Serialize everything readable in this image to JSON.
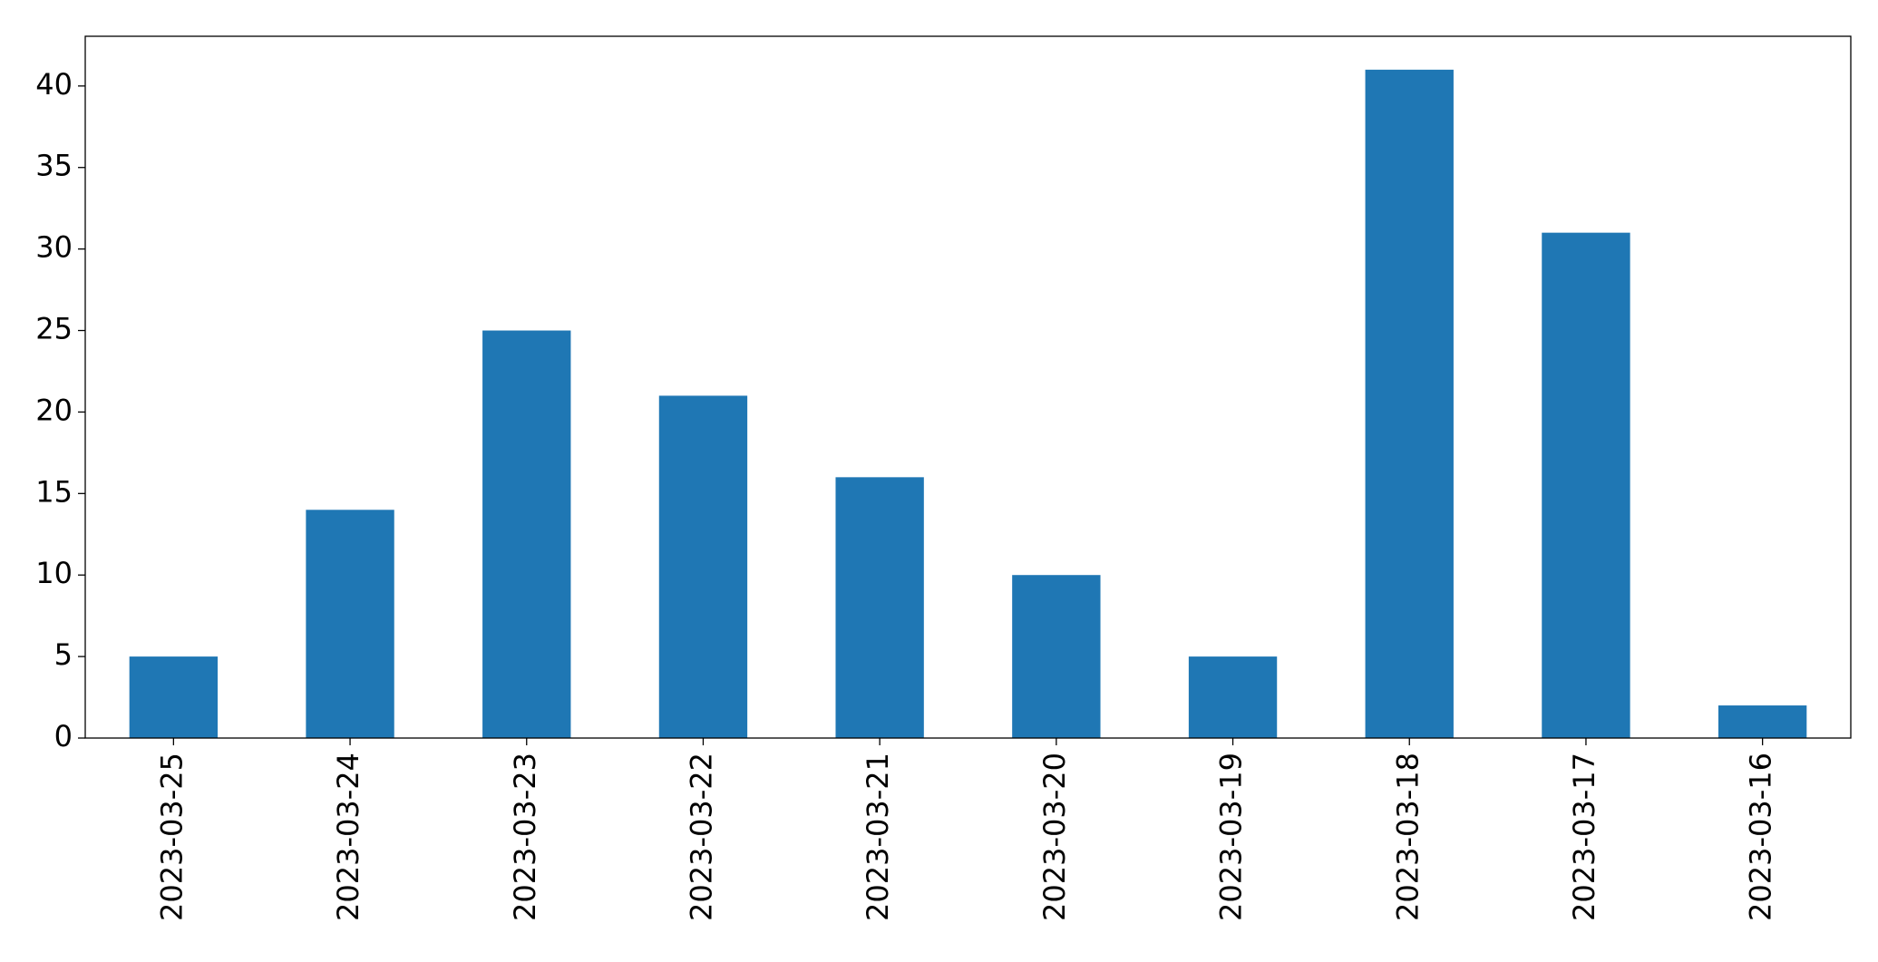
{
  "chart_data": {
    "type": "bar",
    "categories": [
      "2023-03-25",
      "2023-03-24",
      "2023-03-23",
      "2023-03-22",
      "2023-03-21",
      "2023-03-20",
      "2023-03-19",
      "2023-03-18",
      "2023-03-17",
      "2023-03-16"
    ],
    "values": [
      5,
      14,
      25,
      21,
      16,
      10,
      5,
      41,
      31,
      2
    ],
    "color": "#1f77b4",
    "ylim": [
      0,
      43.05
    ],
    "yticks": [
      0,
      5,
      10,
      15,
      20,
      25,
      30,
      35,
      40
    ],
    "grid": false
  }
}
